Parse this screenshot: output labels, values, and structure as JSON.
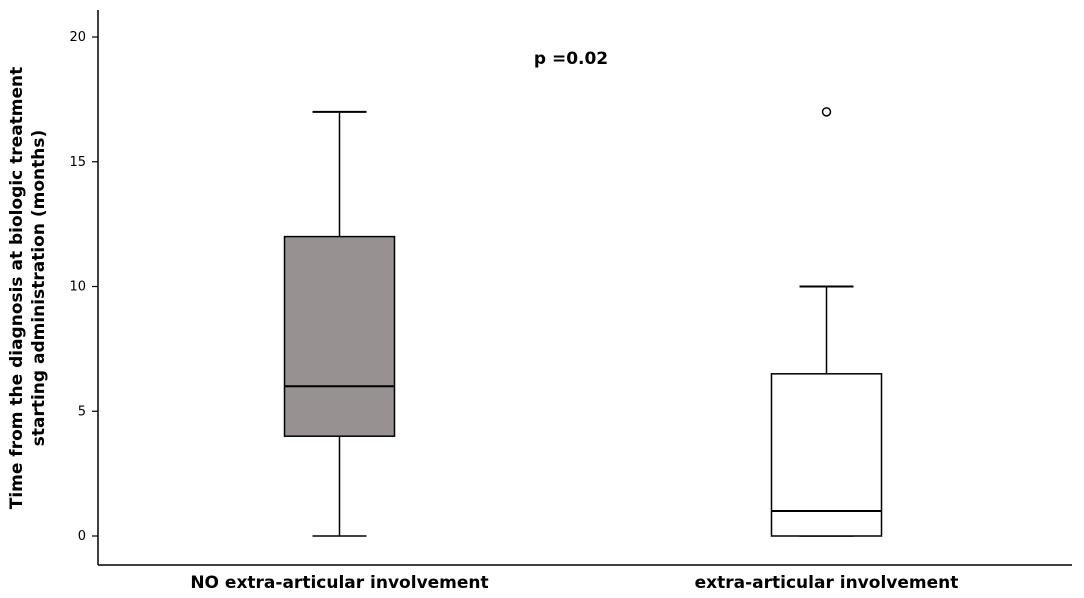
{
  "chart_data": {
    "type": "box",
    "ylabel_lines": [
      "Time from the diagnosis at biologic treatment",
      "starting administration (months)"
    ],
    "ylim": [
      0,
      20
    ],
    "yticks": [
      0,
      5,
      10,
      15,
      20
    ],
    "annotation": "p =0.02",
    "grid": false,
    "categories": [
      {
        "label": "NO extra-articular involvement",
        "min": 0,
        "q1": 4,
        "median": 6,
        "q3": 12,
        "max": 17,
        "outliers": [],
        "fill": "#979191"
      },
      {
        "label": "extra-articular involvement",
        "min": 0,
        "q1": 0,
        "median": 1,
        "q3": 6.5,
        "max": 10,
        "outliers": [
          17
        ],
        "fill": "#ffffff"
      }
    ]
  }
}
